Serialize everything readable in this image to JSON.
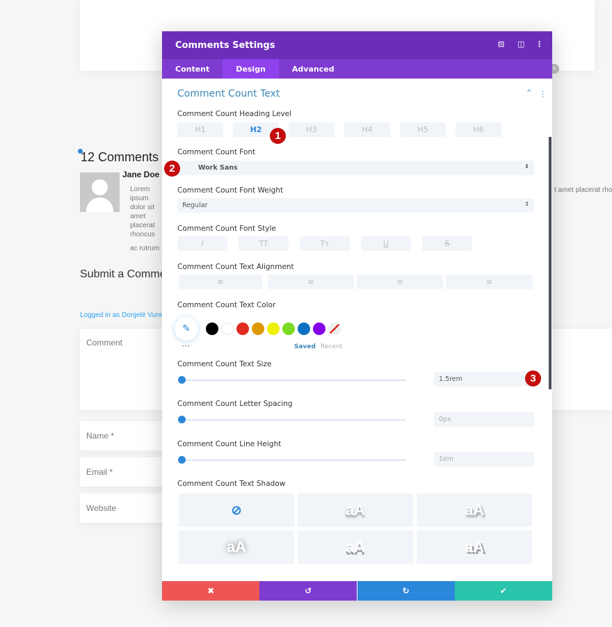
{
  "page": {
    "comment_count": "12 Comments",
    "author": "Jane Doe",
    "body_line1": "Lorem ipsum dolor sit amet placerat rhoncus",
    "body_line2": "ac rutrum",
    "body_right": "t amet placerat rho",
    "submit_heading": "Submit a Comment",
    "logged_in": "Logged in as Donjetë Vuniqi",
    "comment_placeholder": "Comment",
    "name_placeholder": "Name *",
    "email_placeholder": "Email *",
    "website_placeholder": "Website"
  },
  "modal": {
    "title": "Comments Settings",
    "tabs": [
      "Content",
      "Design",
      "Advanced"
    ],
    "active_tab": "Design",
    "section_title": "Comment Count Text",
    "heading_level_label": "Comment Count Heading Level",
    "heading_levels": [
      "H1",
      "H2",
      "H3",
      "H4",
      "H5",
      "H6"
    ],
    "heading_selected": "H2",
    "font_label": "Comment Count Font",
    "font_value": "Work Sans",
    "weight_label": "Comment Count Font Weight",
    "weight_value": "Regular",
    "style_label": "Comment Count Font Style",
    "style_buttons": [
      "I",
      "TT",
      "Tт",
      "U",
      "S"
    ],
    "align_label": "Comment Count Text Alignment",
    "color_label": "Comment Count Text Color",
    "swatches": [
      "#000000",
      "#ffffff",
      "#e02b20",
      "#e09900",
      "#edf000",
      "#7cda24",
      "#0c71c3",
      "#8300e9"
    ],
    "saved": "Saved",
    "recent": "Recent",
    "more": "•••",
    "size_label": "Comment Count Text Size",
    "size_value": "1.5rem",
    "spacing_label": "Comment Count Letter Spacing",
    "spacing_value": "0px",
    "lineheight_label": "Comment Count Line Height",
    "lineheight_value": "1em",
    "shadow_label": "Comment Count Text Shadow",
    "shadow_sample": "aA",
    "footer_colors": {
      "cancel": "#ef5555",
      "undo": "#7d3bcf",
      "redo": "#2b87da",
      "save": "#29c4a9"
    }
  },
  "annotations": [
    "1",
    "2",
    "3"
  ]
}
